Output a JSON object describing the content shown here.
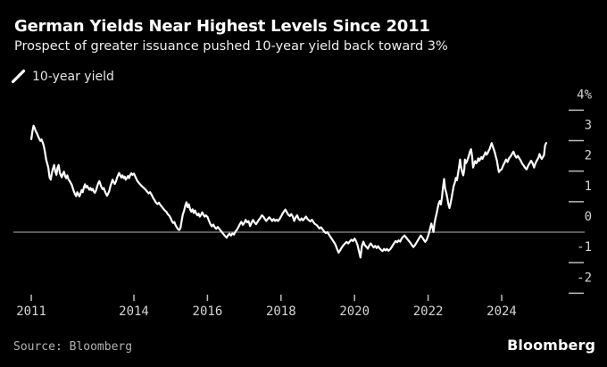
{
  "header": {
    "title": "German Yields Near Highest Levels Since 2011",
    "subtitle": "Prospect of greater issuance pushed 10-year yield back toward 3%"
  },
  "legend": {
    "label": "10-year yield",
    "marker_icon": "diagonal-line-swatch",
    "marker_color": "#ffffff"
  },
  "footer": {
    "source": "Source: Bloomberg",
    "logo": "Bloomberg"
  },
  "colors": {
    "background": "#000000",
    "line": "#ffffff",
    "zero_line": "#919191",
    "tick": "#bcbcbc",
    "tick_label": "#d4d4d4",
    "title": "#ffffff",
    "subtitle": "#efefef",
    "source": "#b3b3b3"
  },
  "chart_data": {
    "type": "line",
    "title": "German Yields Near Highest Levels Since 2011",
    "subtitle": "Prospect of greater issuance pushed 10-year yield back toward 3%",
    "legend_entries": [
      "10-year yield"
    ],
    "grid": "zero-line-only",
    "legend_position": "top-left",
    "x_range": [
      2011.21,
      2025.21
    ],
    "y_axis": {
      "unit": "%",
      "range": [
        -2.6,
        4.4
      ],
      "ticks": [
        {
          "label": "4%",
          "value": 4
        },
        {
          "label": "3",
          "value": 3
        },
        {
          "label": "2",
          "value": 2
        },
        {
          "label": "1",
          "value": 1
        },
        {
          "label": "0",
          "value": 0,
          "zero_line": true
        },
        {
          "label": "-1",
          "value": -1
        },
        {
          "label": "-2",
          "value": -2
        }
      ]
    },
    "x_axis": {
      "ticks": [
        {
          "label": "2011",
          "year": 2011
        },
        {
          "label": "2014",
          "year": 2014
        },
        {
          "label": "2016",
          "year": 2016
        },
        {
          "label": "2018",
          "year": 2018
        },
        {
          "label": "2020",
          "year": 2020
        },
        {
          "label": "2022",
          "year": 2022
        },
        {
          "label": "2024",
          "year": 2024
        }
      ]
    },
    "series": [
      {
        "name": "10-year yield",
        "color": "#ffffff",
        "segments": [
          {
            "start": 2011.21,
            "step": 0.031,
            "values": [
              3.05,
              3.3,
              3.49,
              3.4,
              3.3,
              3.24,
              3.14,
              3.06,
              2.99,
              3.04,
              2.94,
              2.82,
              2.62,
              2.38,
              2.25,
              2.1,
              1.8,
              1.72,
              1.92,
              2.08,
              2.2,
              2.0,
              1.88,
              2.1,
              2.2,
              1.95
            ]
          },
          {
            "start": 2012.01,
            "step": 0.03,
            "values": [
              1.87,
              1.8,
              1.92,
              1.98,
              1.83,
              1.77,
              1.86,
              1.73,
              1.68,
              1.62,
              1.55,
              1.44,
              1.33,
              1.24,
              1.18,
              1.31,
              1.24,
              1.17,
              1.28,
              1.38,
              1.31,
              1.47,
              1.57,
              1.46,
              1.52,
              1.45,
              1.39,
              1.45,
              1.37,
              1.42,
              1.33,
              1.29,
              1.37
            ]
          },
          {
            "start": 2013.0,
            "step": 0.03,
            "values": [
              1.49,
              1.6,
              1.67,
              1.57,
              1.47,
              1.41,
              1.45,
              1.34,
              1.26,
              1.19,
              1.27,
              1.35,
              1.5,
              1.61,
              1.72,
              1.64,
              1.58,
              1.66,
              1.77,
              1.87,
              1.94,
              1.85,
              1.79,
              1.86,
              1.77,
              1.82,
              1.72,
              1.78,
              1.84,
              1.77,
              1.87,
              1.93,
              1.88
            ]
          },
          {
            "start": 2014.0,
            "step": 0.04,
            "values": [
              1.92,
              1.82,
              1.71,
              1.64,
              1.58,
              1.53,
              1.48,
              1.44,
              1.39,
              1.33,
              1.27,
              1.31,
              1.23,
              1.13,
              1.05,
              0.97,
              0.92,
              0.97,
              0.89,
              0.83,
              0.77,
              0.71,
              0.67,
              0.59,
              0.54
            ]
          },
          {
            "start": 2015.0,
            "step": 0.033,
            "values": [
              0.46,
              0.36,
              0.3,
              0.33,
              0.23,
              0.16,
              0.1,
              0.07,
              0.13,
              0.35,
              0.58,
              0.7,
              0.86,
              0.98,
              0.82,
              0.91,
              0.75,
              0.67,
              0.75,
              0.63,
              0.71,
              0.61,
              0.55,
              0.61,
              0.51,
              0.57,
              0.65,
              0.57,
              0.51,
              0.55
            ]
          },
          {
            "start": 2016.0,
            "step": 0.04,
            "values": [
              0.5,
              0.38,
              0.26,
              0.19,
              0.25,
              0.16,
              0.11,
              0.17,
              0.11,
              0.05,
              -0.01,
              -0.07,
              -0.13,
              -0.18,
              -0.1,
              -0.05,
              -0.11,
              -0.04,
              -0.08,
              0.02,
              0.08,
              0.16,
              0.26,
              0.34,
              0.24
            ]
          },
          {
            "start": 2017.0,
            "step": 0.04,
            "values": [
              0.3,
              0.4,
              0.32,
              0.36,
              0.2,
              0.31,
              0.4,
              0.32,
              0.26,
              0.33,
              0.41,
              0.47,
              0.55,
              0.51,
              0.43,
              0.37,
              0.43,
              0.49,
              0.43,
              0.37,
              0.43,
              0.37,
              0.41,
              0.37,
              0.43
            ]
          },
          {
            "start": 2018.0,
            "step": 0.04,
            "values": [
              0.51,
              0.6,
              0.68,
              0.74,
              0.65,
              0.57,
              0.53,
              0.59,
              0.51,
              0.37,
              0.49,
              0.55,
              0.43,
              0.39,
              0.45,
              0.39,
              0.45,
              0.51,
              0.43,
              0.39,
              0.35,
              0.41,
              0.33,
              0.27,
              0.24
            ]
          },
          {
            "start": 2019.0,
            "step": 0.0435,
            "values": [
              0.19,
              0.12,
              0.16,
              0.09,
              0.02,
              -0.03,
              0.0,
              -0.08,
              -0.16,
              -0.24,
              -0.32,
              -0.4,
              -0.54,
              -0.67,
              -0.59,
              -0.5,
              -0.43,
              -0.37,
              -0.32,
              -0.37,
              -0.31,
              -0.25,
              -0.29
            ]
          },
          {
            "start": 2020.0,
            "step": 0.04,
            "values": [
              -0.21,
              -0.29,
              -0.42,
              -0.62,
              -0.83,
              -0.46,
              -0.31,
              -0.43,
              -0.48,
              -0.54,
              -0.44,
              -0.37,
              -0.44,
              -0.5,
              -0.45,
              -0.52,
              -0.46,
              -0.53,
              -0.58,
              -0.62,
              -0.55,
              -0.6,
              -0.55,
              -0.61,
              -0.57
            ]
          },
          {
            "start": 2021.0,
            "step": 0.04,
            "values": [
              -0.51,
              -0.43,
              -0.35,
              -0.29,
              -0.33,
              -0.27,
              -0.31,
              -0.21,
              -0.15,
              -0.11,
              -0.17,
              -0.23,
              -0.29,
              -0.35,
              -0.43,
              -0.49,
              -0.43,
              -0.35,
              -0.27,
              -0.19,
              -0.11,
              -0.17,
              -0.25,
              -0.32,
              -0.25
            ]
          },
          {
            "start": 2022.0,
            "step": 0.029,
            "values": [
              -0.12,
              -0.01,
              0.14,
              0.28,
              0.15,
              0.01,
              0.3,
              0.47,
              0.62,
              0.8,
              0.94,
              1.02,
              0.91,
              1.14,
              1.47,
              1.74,
              1.42,
              1.3,
              1.12,
              0.92,
              0.79,
              0.94,
              1.12,
              1.33,
              1.52,
              1.62,
              1.78,
              1.7,
              1.92,
              2.12,
              2.38,
              2.12,
              1.97,
              1.86,
              2.08
            ]
          },
          {
            "start": 2023.0,
            "step": 0.028,
            "values": [
              2.38,
              2.26,
              2.32,
              2.42,
              2.52,
              2.65,
              2.72,
              2.48,
              2.12,
              2.24,
              2.33,
              2.26,
              2.3,
              2.42,
              2.34,
              2.4,
              2.46,
              2.4,
              2.48,
              2.54,
              2.62,
              2.54,
              2.58,
              2.66,
              2.72,
              2.82,
              2.92,
              2.82,
              2.72,
              2.62,
              2.48,
              2.36,
              2.16,
              1.97,
              2.02
            ]
          },
          {
            "start": 2024.0,
            "step": 0.04,
            "values": [
              2.06,
              2.18,
              2.28,
              2.38,
              2.3,
              2.42,
              2.48,
              2.56,
              2.64,
              2.52,
              2.44,
              2.5,
              2.42,
              2.34,
              2.24,
              2.18,
              2.1,
              2.06,
              2.18,
              2.26,
              2.34,
              2.26,
              2.12,
              2.26,
              2.36
            ]
          },
          {
            "start": 2025.0,
            "step": 0.03,
            "values": [
              2.44,
              2.56,
              2.46,
              2.4,
              2.46,
              2.52,
              2.84,
              2.92
            ]
          }
        ]
      }
    ]
  }
}
